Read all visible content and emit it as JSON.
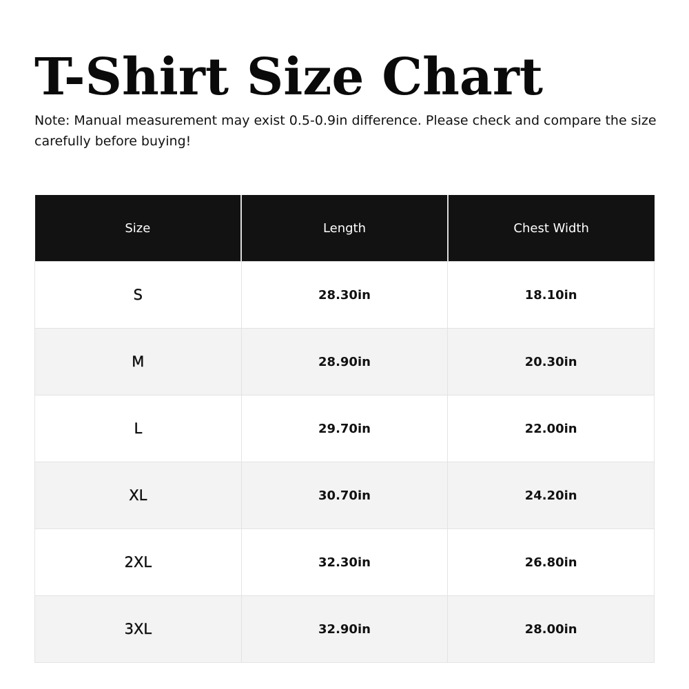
{
  "title": "T-Shirt Size Chart",
  "note": "Note: Manual measurement may exist 0.5-0.9in difference. Please check and compare the size carefully before buying!",
  "table": {
    "headers": [
      "Size",
      "Length",
      "Chest Width"
    ],
    "rows": [
      [
        "S",
        "28.30in",
        "18.10in"
      ],
      [
        "M",
        "28.90in",
        "20.30in"
      ],
      [
        "L",
        "29.70in",
        "22.00in"
      ],
      [
        "XL",
        "30.70in",
        "24.20in"
      ],
      [
        "2XL",
        "32.30in",
        "26.80in"
      ],
      [
        "3XL",
        "32.90in",
        "28.00in"
      ]
    ]
  },
  "colors": {
    "header_bg": "#121212",
    "alt_row_bg": "#f3f3f3"
  }
}
